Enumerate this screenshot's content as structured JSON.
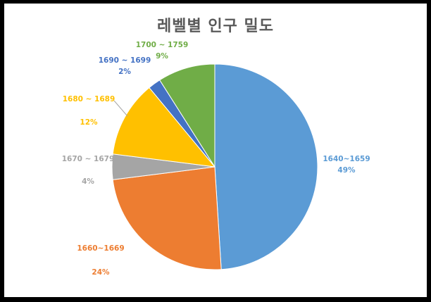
{
  "chart_data": {
    "type": "pie",
    "title": "레벨별 인구 밀도",
    "slices": [
      {
        "label": "1640~1659",
        "pct_label": "49%",
        "value": 49,
        "color": "#5B9BD5"
      },
      {
        "label": "1660~1669",
        "pct_label": "24%",
        "value": 24,
        "color": "#ED7D31"
      },
      {
        "label": "1670 ~ 1679",
        "pct_label": "4%",
        "value": 4,
        "color": "#A5A5A5"
      },
      {
        "label": "1680 ~ 1689",
        "pct_label": "12%",
        "value": 12,
        "color": "#FFC000"
      },
      {
        "label": "1690 ~ 1699",
        "pct_label": "2%",
        "value": 2,
        "color": "#4472C4"
      },
      {
        "label": "1700 ~ 1759",
        "pct_label": "9%",
        "value": 9,
        "color": "#70AD47"
      }
    ],
    "start_angle_deg": 0,
    "direction": "clockwise"
  }
}
